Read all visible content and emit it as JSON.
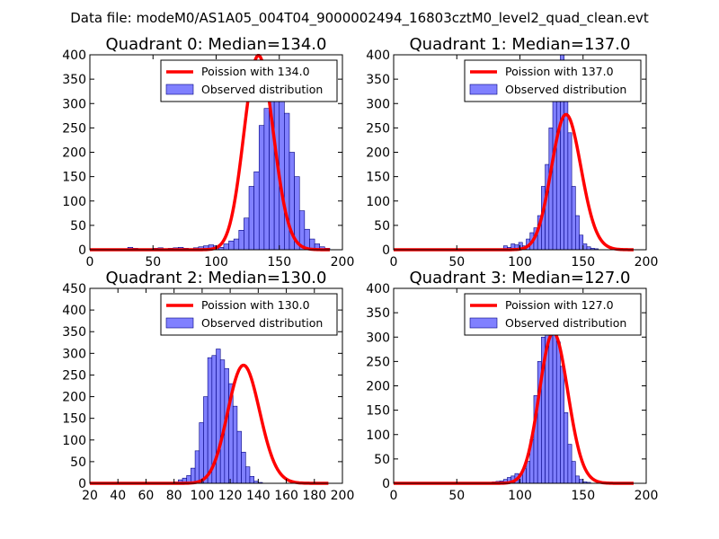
{
  "figure_title": "Data file: modeM0/AS1A05_004T04_9000002494_16803cztM0_level2_quad_clean.evt",
  "chart_data": [
    {
      "type": "bar",
      "title": "Quadrant 0: Median=134.0",
      "xlim": [
        0,
        200
      ],
      "ylim": [
        0,
        400
      ],
      "xticks": [
        0,
        50,
        100,
        150,
        200
      ],
      "yticks": [
        0,
        50,
        100,
        150,
        200,
        250,
        300,
        350,
        400
      ],
      "legend": {
        "placement": "upper-right",
        "entries": [
          "Poission with 134.0",
          "Observed distribution"
        ]
      },
      "bins": {
        "x0": 30,
        "width": 4
      },
      "values": [
        5,
        3,
        2,
        2,
        2,
        3,
        4,
        2,
        3,
        4,
        5,
        3,
        2,
        4,
        6,
        8,
        10,
        8,
        5,
        12,
        18,
        22,
        40,
        65,
        130,
        160,
        255,
        290,
        365,
        340,
        320,
        280,
        200,
        150,
        80,
        42,
        22,
        12,
        6,
        3
      ],
      "poisson_mean": 134.0
    },
    {
      "type": "bar",
      "title": "Quadrant 1: Median=137.0",
      "xlim": [
        0,
        200
      ],
      "ylim": [
        0,
        400
      ],
      "xticks": [
        0,
        50,
        100,
        150,
        200
      ],
      "yticks": [
        0,
        50,
        100,
        150,
        200,
        250,
        300,
        350,
        400
      ],
      "legend": {
        "placement": "upper-right",
        "entries": [
          "Poission with 137.0",
          "Observed distribution"
        ]
      },
      "bins": {
        "x0": 84,
        "width": 3
      },
      "values": [
        2,
        8,
        5,
        12,
        10,
        15,
        8,
        22,
        35,
        45,
        70,
        130,
        175,
        250,
        305,
        380,
        400,
        350,
        240,
        130,
        70,
        30,
        12,
        6,
        3,
        2
      ],
      "poisson_mean": 137.0
    },
    {
      "type": "bar",
      "title": "Quadrant 2: Median=130.0",
      "xlim": [
        20,
        200
      ],
      "ylim": [
        0,
        450
      ],
      "xticks": [
        20,
        40,
        60,
        80,
        100,
        120,
        140,
        160,
        180,
        200
      ],
      "yticks": [
        0,
        50,
        100,
        150,
        200,
        250,
        300,
        350,
        400,
        450
      ],
      "legend": {
        "placement": "upper-right",
        "entries": [
          "Poission with 130.0",
          "Observed distribution"
        ]
      },
      "bins": {
        "x0": 80,
        "width": 3
      },
      "values": [
        3,
        8,
        12,
        18,
        35,
        75,
        140,
        200,
        290,
        295,
        310,
        285,
        265,
        230,
        178,
        120,
        72,
        38,
        16,
        5,
        2
      ],
      "poisson_mean": 130.0
    },
    {
      "type": "bar",
      "title": "Quadrant 3: Median=127.0",
      "xlim": [
        0,
        200
      ],
      "ylim": [
        0,
        400
      ],
      "xticks": [
        0,
        50,
        100,
        150,
        200
      ],
      "yticks": [
        0,
        50,
        100,
        150,
        200,
        250,
        300,
        350,
        400
      ],
      "legend": {
        "placement": "upper-right",
        "entries": [
          "Poission with 127.0",
          "Observed distribution"
        ]
      },
      "bins": {
        "x0": 78,
        "width": 3
      },
      "values": [
        3,
        4,
        5,
        8,
        12,
        15,
        20,
        18,
        30,
        45,
        90,
        180,
        250,
        300,
        375,
        385,
        345,
        290,
        240,
        145,
        80,
        45,
        15,
        8,
        3,
        2
      ],
      "poisson_mean": 127.0
    }
  ]
}
